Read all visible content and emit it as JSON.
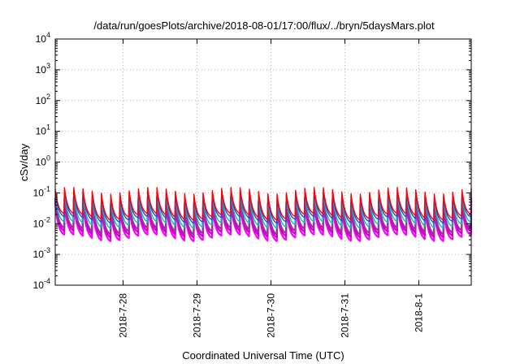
{
  "chart_data": {
    "type": "line",
    "title": "/data/run/goesPlots/archive/2018-08-01/17:00/flux/../bryn/5daysMars.plot",
    "xlabel": "Coordinated Universal Time (UTC)",
    "ylabel": "cSv/day",
    "y_scale": "log",
    "ylim": [
      0.0001,
      10000
    ],
    "y_ticks": [
      {
        "base": "10",
        "exp": "-4",
        "value": 0.0001
      },
      {
        "base": "10",
        "exp": "-3",
        "value": 0.001
      },
      {
        "base": "10",
        "exp": "-2",
        "value": 0.01
      },
      {
        "base": "10",
        "exp": "-1",
        "value": 0.1
      },
      {
        "base": "10",
        "exp": "0",
        "value": 1
      },
      {
        "base": "10",
        "exp": "1",
        "value": 10
      },
      {
        "base": "10",
        "exp": "2",
        "value": 100
      },
      {
        "base": "10",
        "exp": "3",
        "value": 1000
      },
      {
        "base": "10",
        "exp": "4",
        "value": 10000
      }
    ],
    "xlim": [
      "2018-07-27T02:00",
      "2018-08-01T17:00"
    ],
    "x_ticks": [
      {
        "label": "2018-7-28",
        "value": "2018-07-28T00:00"
      },
      {
        "label": "2018-7-29",
        "value": "2018-07-29T00:00"
      },
      {
        "label": "2018-7-30",
        "value": "2018-07-30T00:00"
      },
      {
        "label": "2018-7-31",
        "value": "2018-07-31T00:00"
      },
      {
        "label": "2018-8-1",
        "value": "2018-08-01T00:00"
      }
    ],
    "grid": true,
    "oscillation_period_hours": 3,
    "series": [
      {
        "color": "#ff00ff",
        "peak": 0.04,
        "trough": 0.003
      },
      {
        "color": "#cc00cc",
        "peak": 0.05,
        "trough": 0.004
      },
      {
        "color": "#993399",
        "peak": 0.06,
        "trough": 0.005
      },
      {
        "color": "#00bfbf",
        "peak": 0.08,
        "trough": 0.008
      },
      {
        "color": "#1f4fd8",
        "peak": 0.1,
        "trough": 0.012
      },
      {
        "color": "#ff0000",
        "peak": 0.12,
        "trough": 0.015
      }
    ]
  }
}
